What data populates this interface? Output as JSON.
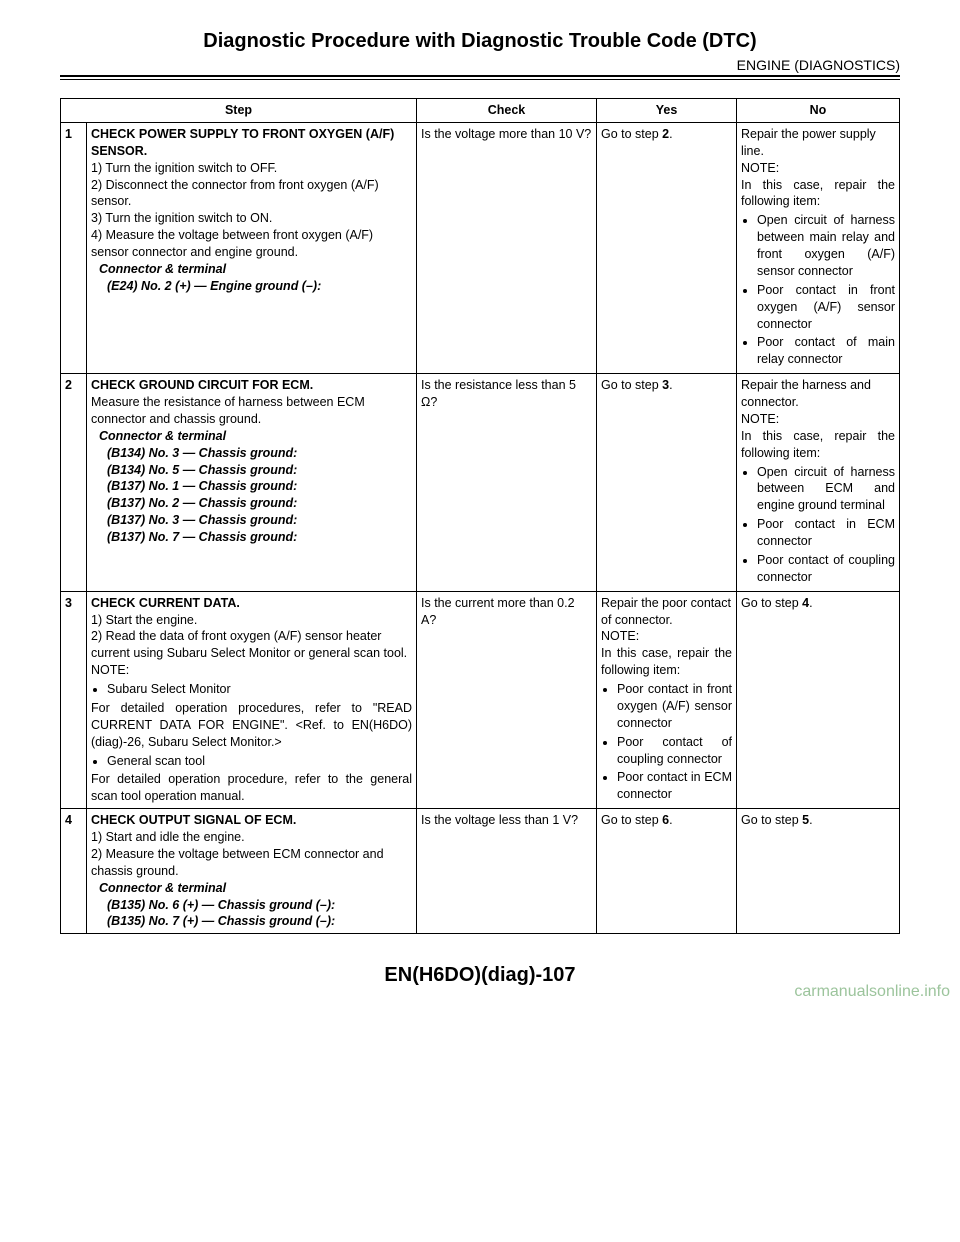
{
  "header": {
    "title": "Diagnostic Procedure with Diagnostic Trouble Code (DTC)",
    "subtitle": "ENGINE (DIAGNOSTICS)"
  },
  "columns": {
    "step": "Step",
    "check": "Check",
    "yes": "Yes",
    "no": "No"
  },
  "rows": {
    "r1": {
      "num": "1",
      "title": "CHECK POWER SUPPLY TO FRONT OXYGEN (A/F) SENSOR.",
      "l1": "1)  Turn the ignition switch to OFF.",
      "l2": "2)  Disconnect the connector from front oxygen (A/F) sensor.",
      "l3": "3)  Turn the ignition switch to ON.",
      "l4": "4)  Measure the voltage between front oxygen (A/F) sensor connector and engine ground.",
      "ct": "Connector & terminal",
      "ct1": "(E24) No. 2 (+) — Engine ground (–):",
      "check": "Is the voltage more than 10 V?",
      "yes_a": "Go to step ",
      "yes_b": "2",
      "yes_c": ".",
      "no1": "Repair the power supply line.",
      "no_note": "NOTE:",
      "no2": "In this case, repair the following item:",
      "no_b1": "Open circuit of harness between main relay and front oxygen (A/F) sensor connector",
      "no_b2": "Poor contact in front oxygen (A/F) sensor connector",
      "no_b3": "Poor contact of main relay connector"
    },
    "r2": {
      "num": "2",
      "title": "CHECK GROUND CIRCUIT FOR ECM.",
      "l1": "Measure the resistance of harness between ECM connector and chassis ground.",
      "ct": "Connector & terminal",
      "ct1": "(B134) No. 3 — Chassis ground:",
      "ct2": "(B134) No. 5 — Chassis ground:",
      "ct3": "(B137) No. 1 — Chassis ground:",
      "ct4": "(B137) No. 2 — Chassis ground:",
      "ct5": "(B137) No. 3 — Chassis ground:",
      "ct6": "(B137) No. 7 — Chassis ground:",
      "check": "Is the resistance less than 5 Ω?",
      "yes_a": "Go to step ",
      "yes_b": "3",
      "yes_c": ".",
      "no1": "Repair the harness and connector.",
      "no_note": "NOTE:",
      "no2": "In this case, repair the following item:",
      "no_b1": "Open circuit of harness between ECM and engine ground terminal",
      "no_b2": "Poor contact in ECM connector",
      "no_b3": "Poor contact of coupling connector"
    },
    "r3": {
      "num": "3",
      "title": "CHECK CURRENT DATA.",
      "l1": "1)  Start the engine.",
      "l2": "2)  Read the data of front oxygen (A/F) sensor heater current using Subaru Select Monitor or general scan tool.",
      "note": "NOTE:",
      "nb1": "Subaru Select Monitor",
      "nb1t": "For detailed operation procedures, refer to \"READ CURRENT DATA FOR ENGINE\". <Ref. to EN(H6DO)(diag)-26, Subaru Select Monitor.>",
      "nb2": "General scan tool",
      "nb2t": "For detailed operation procedure, refer to the general scan tool operation manual.",
      "check": "Is the current more than 0.2 A?",
      "yes1": "Repair the poor contact of connector.",
      "yes_note": "NOTE:",
      "yes2": "In this case, repair the following item:",
      "yes_b1": "Poor contact in front oxygen (A/F) sensor connector",
      "yes_b2": "Poor contact of coupling connector",
      "yes_b3": "Poor contact in ECM connector",
      "no_a": "Go to step ",
      "no_b": "4",
      "no_c": "."
    },
    "r4": {
      "num": "4",
      "title": "CHECK OUTPUT SIGNAL OF ECM.",
      "l1": "1)  Start and idle the engine.",
      "l2": "2)  Measure the voltage between ECM connector and chassis ground.",
      "ct": "Connector & terminal",
      "ct1": "(B135) No. 6 (+) — Chassis ground (–):",
      "ct2": "(B135) No. 7 (+) — Chassis ground (–):",
      "check": "Is the voltage less than 1 V?",
      "yes_a": "Go to step ",
      "yes_b": "6",
      "yes_c": ".",
      "no_a": "Go to step ",
      "no_b": "5",
      "no_c": "."
    }
  },
  "footer": {
    "code": "EN(H6DO)(diag)-107",
    "watermark": "carmanualsonline.info"
  }
}
